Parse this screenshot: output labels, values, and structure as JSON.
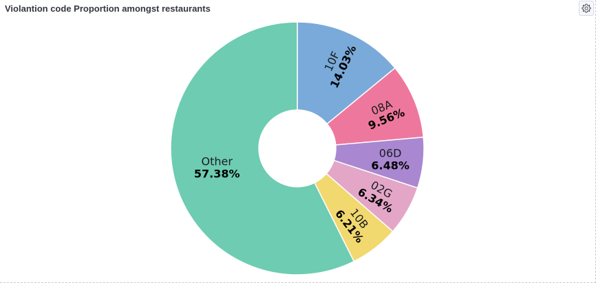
{
  "panel": {
    "title": "Violantion code Proportion amongst restaurants"
  },
  "icons": {
    "options": "gear-icon"
  },
  "chart_data": {
    "type": "pie",
    "donut": true,
    "slices": [
      {
        "label": "10F",
        "value": 14.03,
        "display": "14.03%",
        "color": "#79aad9"
      },
      {
        "label": "08A",
        "value": 9.56,
        "display": "9.56%",
        "color": "#ee789d"
      },
      {
        "label": "06D",
        "value": 6.48,
        "display": "6.48%",
        "color": "#a987d1"
      },
      {
        "label": "02G",
        "value": 6.34,
        "display": "6.34%",
        "color": "#e4a6c7"
      },
      {
        "label": "10B",
        "value": 6.21,
        "display": "6.21%",
        "color": "#f1d86f"
      },
      {
        "label": "Other",
        "value": 57.38,
        "display": "57.38%",
        "color": "#6dccb1"
      }
    ]
  }
}
